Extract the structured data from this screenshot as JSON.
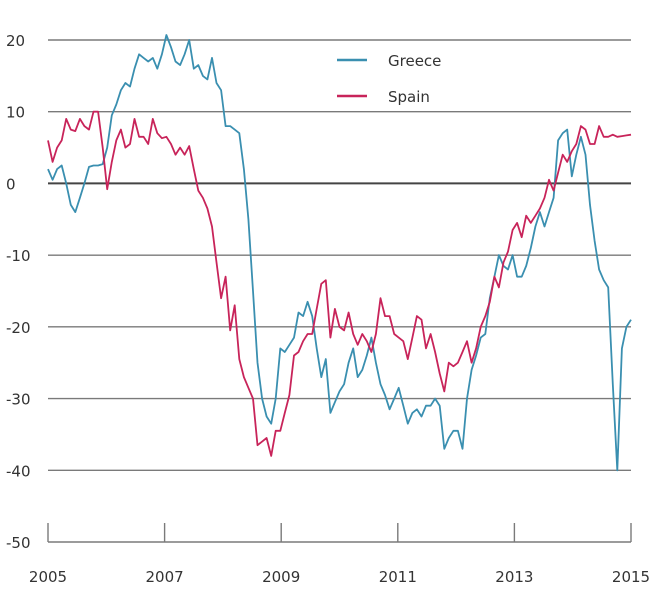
{
  "chart_data": {
    "type": "line",
    "title": "",
    "xlabel": "",
    "ylabel": "",
    "x_start": 2005,
    "x_end": 2015,
    "x_step_months": 1,
    "xlim": [
      2005,
      2015
    ],
    "ylim": [
      -50,
      20
    ],
    "x_ticks": [
      2005,
      2007,
      2009,
      2011,
      2013,
      2015
    ],
    "x_tick_labels": [
      "2005",
      "2007",
      "2009",
      "2011",
      "2013",
      "2015"
    ],
    "y_ticks": [
      20,
      10,
      0,
      -10,
      -20,
      -30,
      -40,
      -50
    ],
    "y_tick_labels": [
      "20",
      "10",
      "0",
      "-10",
      "-20",
      "-30",
      "-40",
      "-50"
    ],
    "grid": "horizontal",
    "legend": {
      "placement": "top-center",
      "entries": [
        "Greece",
        "Spain"
      ]
    },
    "series": [
      {
        "name": "Greece",
        "color": "#3a8fb0",
        "values": [
          2,
          0.5,
          2,
          2.5,
          0,
          -3,
          -4,
          -2,
          0,
          2.3,
          2.5,
          2.5,
          2.7,
          5,
          9.5,
          11,
          13,
          14,
          13.5,
          16,
          18,
          17.5,
          17,
          17.5,
          16,
          18,
          20.7,
          19,
          17,
          16.5,
          18,
          20,
          16,
          16.5,
          15,
          14.5,
          17.5,
          14,
          13,
          8,
          8,
          7.5,
          7,
          2,
          -5,
          -15,
          -25,
          -30,
          -32.5,
          -33.5,
          -30,
          -23,
          -23.5,
          -22.5,
          -21.5,
          -18,
          -18.5,
          -16.5,
          -18.5,
          -23,
          -27,
          -24.5,
          -32,
          -30.5,
          -29,
          -28,
          -25,
          -23,
          -27,
          -26,
          -24,
          -21.5,
          -25,
          -28,
          -29.5,
          -31.5,
          -30,
          -28.5,
          -31,
          -33.5,
          -32,
          -31.5,
          -32.5,
          -31,
          -31,
          -30,
          -31,
          -37,
          -35.5,
          -34.5,
          -34.5,
          -37,
          -30,
          -26,
          -24,
          -21.5,
          -21,
          -16,
          -13,
          -10,
          -11.5,
          -12,
          -10,
          -13,
          -13,
          -11.5,
          -9,
          -6,
          -4,
          -6,
          -4,
          -2,
          6,
          7,
          7.5,
          1,
          4,
          6.5,
          4,
          -3,
          -8,
          -12,
          -13.5,
          -14.5,
          -28,
          -40,
          -23,
          -20,
          -19
        ]
      },
      {
        "name": "Spain",
        "color": "#c8245a",
        "values": [
          6,
          3,
          5,
          6,
          9,
          7.5,
          7.3,
          9,
          8,
          7.5,
          10,
          10,
          5,
          -0.8,
          3,
          6,
          7.5,
          5,
          5.5,
          9,
          6.5,
          6.5,
          5.5,
          9,
          7,
          6.3,
          6.5,
          5.5,
          4,
          5,
          4,
          5.2,
          2,
          -1,
          -2,
          -3.5,
          -6,
          -11,
          -16,
          -13,
          -20.5,
          -17,
          -24.5,
          -27,
          -28.5,
          -30,
          -36.5,
          -36,
          -35.5,
          -38,
          -34.5,
          -34.5,
          -32,
          -29.5,
          -24,
          -23.5,
          -22,
          -21,
          -21,
          -17.5,
          -14,
          -13.5,
          -21.5,
          -17.5,
          -20,
          -20.5,
          -18,
          -21,
          -22.5,
          -21,
          -22,
          -23.5,
          -21,
          -16,
          -18.5,
          -18.5,
          -21,
          -21.5,
          -22,
          -24.5,
          -21.5,
          -18.5,
          -19,
          -23,
          -21,
          -23.5,
          -26.5,
          -29,
          -25,
          -25.5,
          -25,
          -23.5,
          -22,
          -25,
          -23,
          -20,
          -18.5,
          -16.5,
          -13,
          -14.5,
          -11,
          -9.5,
          -6.5,
          -5.5,
          -7.5,
          -4.5,
          -5.5,
          -4.5,
          -3.5,
          -2,
          0.5,
          -1,
          1.5,
          4,
          3,
          4.5,
          5.5,
          8,
          7.5,
          5.5,
          5.5,
          8,
          6.5,
          6.5,
          6.8,
          6.5,
          6.6,
          6.7,
          6.8
        ]
      }
    ]
  }
}
